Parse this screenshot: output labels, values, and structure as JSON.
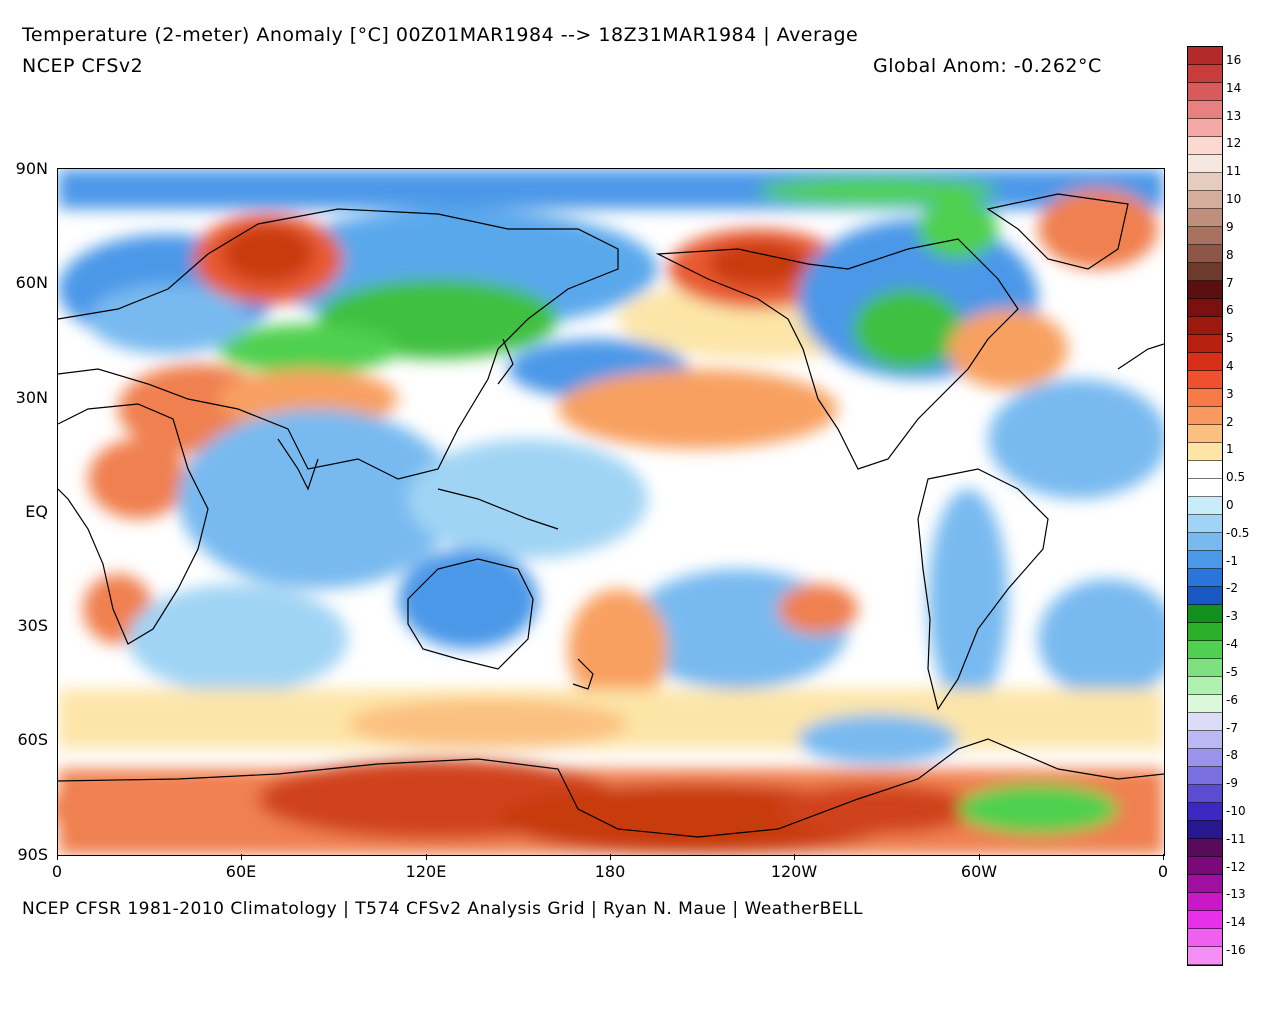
{
  "header": {
    "title_line": "Temperature (2-meter) Anomaly  [°C] 00Z01MAR1984 --> 18Z31MAR1984 | Average",
    "model_label": "NCEP CFSv2",
    "global_anom": "Global Anom: -0.262°C"
  },
  "footer": {
    "credit": "NCEP CFSR 1981-2010 Climatology | T574 CFSv2 Analysis Grid | Ryan N. Maue | WeatherBELL"
  },
  "axes": {
    "lat_labels": [
      "90N",
      "60N",
      "30N",
      "EQ",
      "30S",
      "60S",
      "90S"
    ],
    "lon_labels": [
      "0",
      "60E",
      "120E",
      "180",
      "120W",
      "60W",
      "0"
    ]
  },
  "colorbar": {
    "labels": [
      "16",
      "14",
      "13",
      "12",
      "11",
      "10",
      "9",
      "8",
      "7",
      "6",
      "5",
      "4",
      "3",
      "2",
      "1",
      "0.5",
      "0",
      "-0.5",
      "-1",
      "-2",
      "-3",
      "-4",
      "-5",
      "-6",
      "-7",
      "-8",
      "-9",
      "-10",
      "-11",
      "-12",
      "-13",
      "-14",
      "-16"
    ],
    "colors": [
      "#b22a2a",
      "#c83c3c",
      "#d85a5a",
      "#e88080",
      "#f4a8a8",
      "#fbd8d0",
      "#f5e8e0",
      "#e6cbbf",
      "#d4ad9c",
      "#bf8f7d",
      "#a87260",
      "#8e5646",
      "#6e3a2e",
      "#5a1010",
      "#7a1010",
      "#9a1a10",
      "#b82010",
      "#d83018",
      "#f05030",
      "#f57a48",
      "#f89a60",
      "#fbbf80",
      "#fde5a8",
      "#ffffff",
      "#ffffff",
      "#c8ecf8",
      "#a0d4f4",
      "#78baf0",
      "#4c98e8",
      "#2c74d8",
      "#1858c0",
      "#12901c",
      "#2cb02c",
      "#50d050",
      "#80e080",
      "#b0f0b0",
      "#dcf8dc",
      "#dcdcf8",
      "#bcb8f4",
      "#9c94ec",
      "#7c70e0",
      "#5c4cd0",
      "#3c28c0",
      "#281890",
      "#5a0a5a",
      "#7a0a7a",
      "#a010a0",
      "#c818c8",
      "#e830e8",
      "#f060f0",
      "#f490f4"
    ]
  },
  "legend_palette": {
    "strong_warm": "#c83a10",
    "warm": "#f08050",
    "light_warm": "#fbd090",
    "neutral": "#ffffff",
    "light_cool": "#a8d8f4",
    "cool": "#5aa8ec",
    "strong_cool": "#2c74d8",
    "green": "#40c040",
    "coast": "#000000"
  }
}
